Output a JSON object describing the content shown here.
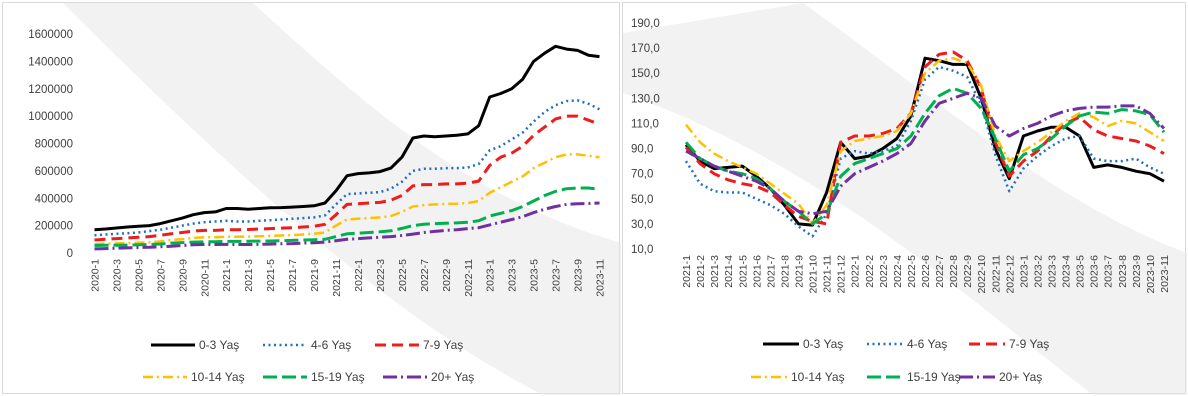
{
  "colors": {
    "0-3": "#000000",
    "4-6": "#1f6fc4",
    "7-9": "#ee1c1c",
    "10-14": "#ffc000",
    "15-19": "#00b050",
    "20+": "#7030a0",
    "background_band": "#e7e7e7"
  },
  "chart_data": [
    {
      "type": "line",
      "ylim": [
        0,
        1600000
      ],
      "yticks": [
        "0",
        "200000",
        "400000",
        "600000",
        "800000",
        "1000000",
        "1200000",
        "1400000",
        "1600000"
      ],
      "x": [
        "2020-1",
        "2020-2",
        "2020-3",
        "2020-4",
        "2020-5",
        "2020-6",
        "2020-7",
        "2020-8",
        "2020-9",
        "2020-10",
        "2020-11",
        "2020-12",
        "2021-1",
        "2021-2",
        "2021-3",
        "2021-4",
        "2021-5",
        "2021-6",
        "2021-7",
        "2021-8",
        "2021-9",
        "2021-10",
        "2021-11",
        "2021-12",
        "2022-1",
        "2022-2",
        "2022-3",
        "2022-4",
        "2022-5",
        "2022-6",
        "2022-7",
        "2022-8",
        "2022-9",
        "2022-10",
        "2022-11",
        "2022-12",
        "2023-1",
        "2023-2",
        "2023-3",
        "2023-4",
        "2023-5",
        "2023-6",
        "2023-7",
        "2023-8",
        "2023-9",
        "2023-10",
        "2023-11"
      ],
      "xticks_shown": [
        "2020-1",
        "2020-3",
        "2020-5",
        "2020-7",
        "2020-9",
        "2020-11",
        "2021-1",
        "2021-3",
        "2021-5",
        "2021-7",
        "2021-9",
        "2021-11",
        "2022-1",
        "2022-3",
        "2022-5",
        "2022-7",
        "2022-9",
        "2022-11",
        "2023-1",
        "2023-3",
        "2023-5",
        "2023-7",
        "2023-9",
        "2023-11"
      ],
      "series": [
        {
          "name": "0-3 Yaş",
          "key": "0-3",
          "values": [
            170000,
            175000,
            183000,
            190000,
            195000,
            200000,
            215000,
            235000,
            255000,
            280000,
            295000,
            300000,
            325000,
            325000,
            320000,
            325000,
            330000,
            332000,
            335000,
            340000,
            345000,
            365000,
            455000,
            565000,
            580000,
            585000,
            595000,
            620000,
            700000,
            840000,
            855000,
            850000,
            855000,
            860000,
            870000,
            930000,
            1140000,
            1165000,
            1200000,
            1270000,
            1400000,
            1460000,
            1510000,
            1490000,
            1480000,
            1445000,
            1435000
          ]
        },
        {
          "name": "4-6 Yaş",
          "key": "4-6",
          "values": [
            130000,
            135000,
            140000,
            145000,
            150000,
            160000,
            170000,
            185000,
            200000,
            215000,
            225000,
            230000,
            235000,
            230000,
            230000,
            235000,
            240000,
            245000,
            250000,
            255000,
            260000,
            275000,
            355000,
            430000,
            435000,
            440000,
            445000,
            470000,
            520000,
            600000,
            615000,
            615000,
            620000,
            620000,
            625000,
            650000,
            750000,
            780000,
            830000,
            880000,
            960000,
            1030000,
            1080000,
            1110000,
            1115000,
            1090000,
            1050000
          ]
        },
        {
          "name": "7-9 Yaş",
          "key": "7-9",
          "values": [
            95000,
            100000,
            105000,
            110000,
            115000,
            120000,
            130000,
            140000,
            150000,
            160000,
            165000,
            165000,
            170000,
            170000,
            172000,
            175000,
            178000,
            182000,
            185000,
            190000,
            195000,
            210000,
            280000,
            355000,
            360000,
            365000,
            370000,
            385000,
            420000,
            490000,
            500000,
            500000,
            505000,
            505000,
            510000,
            525000,
            640000,
            700000,
            730000,
            780000,
            860000,
            920000,
            980000,
            1000000,
            1000000,
            970000,
            940000
          ]
        },
        {
          "name": "10-14 Yaş",
          "key": "10-14",
          "values": [
            65000,
            68000,
            70000,
            72000,
            75000,
            78000,
            85000,
            95000,
            100000,
            110000,
            115000,
            115000,
            118000,
            118000,
            120000,
            122000,
            125000,
            128000,
            130000,
            135000,
            140000,
            150000,
            200000,
            245000,
            250000,
            255000,
            260000,
            270000,
            300000,
            340000,
            350000,
            355000,
            358000,
            360000,
            365000,
            380000,
            440000,
            480000,
            520000,
            560000,
            620000,
            660000,
            700000,
            720000,
            720000,
            710000,
            700000
          ]
        },
        {
          "name": "15-19 Yaş",
          "key": "15-19",
          "values": [
            55000,
            56000,
            57000,
            58000,
            60000,
            62000,
            66000,
            72000,
            76000,
            80000,
            82000,
            82000,
            85000,
            85000,
            86000,
            87000,
            88000,
            90000,
            92000,
            95000,
            97000,
            100000,
            120000,
            140000,
            145000,
            150000,
            155000,
            162000,
            180000,
            200000,
            210000,
            215000,
            218000,
            220000,
            225000,
            235000,
            270000,
            290000,
            310000,
            340000,
            380000,
            420000,
            450000,
            470000,
            475000,
            475000,
            465000
          ]
        },
        {
          "name": "20+ Yaş",
          "key": "20+",
          "values": [
            30000,
            32000,
            35000,
            37000,
            40000,
            42000,
            45000,
            50000,
            55000,
            60000,
            62000,
            62000,
            63000,
            62000,
            62000,
            63000,
            65000,
            67000,
            69000,
            72000,
            75000,
            80000,
            90000,
            100000,
            105000,
            110000,
            115000,
            120000,
            128000,
            138000,
            150000,
            158000,
            165000,
            170000,
            178000,
            185000,
            205000,
            225000,
            245000,
            265000,
            295000,
            320000,
            340000,
            355000,
            360000,
            362000,
            365000
          ]
        }
      ]
    },
    {
      "type": "line",
      "ylim": [
        10,
        190
      ],
      "yticks": [
        "10,0",
        "30,0",
        "50,0",
        "70,0",
        "90,0",
        "110,0",
        "130,0",
        "150,0",
        "170,0",
        "190,0"
      ],
      "x": [
        "2021-1",
        "2021-2",
        "2021-3",
        "2021-4",
        "2021-5",
        "2021-6",
        "2021-7",
        "2021-8",
        "2021-9",
        "2021-10",
        "2021-11",
        "2021-12",
        "2022-1",
        "2022-2",
        "2022-3",
        "2022-4",
        "2022-5",
        "2022-6",
        "2022-7",
        "2022-8",
        "2022-9",
        "2022-10",
        "2022-11",
        "2022-12",
        "2023-1",
        "2023-2",
        "2023-3",
        "2023-4",
        "2023-5",
        "2023-6",
        "2023-7",
        "2023-8",
        "2023-9",
        "2023-10",
        "2023-11"
      ],
      "xticks_shown": [
        "2021-1",
        "2021-2",
        "2021-3",
        "2021-4",
        "2021-5",
        "2021-6",
        "2021-7",
        "2021-8",
        "2021-9",
        "2021-10",
        "2021-11",
        "2021-12",
        "2022-1",
        "2022-2",
        "2022-3",
        "2022-4",
        "2022-5",
        "2022-6",
        "2022-7",
        "2022-8",
        "2022-9",
        "2022-10",
        "2022-11",
        "2022-12",
        "2023-1",
        "2023-2",
        "2023-3",
        "2023-4",
        "2023-5",
        "2023-6",
        "2023-7",
        "2023-8",
        "2023-9",
        "2023-10",
        "2023-11"
      ],
      "series": [
        {
          "name": "0-3 Yaş",
          "key": "0-3",
          "values": [
            93,
            80,
            74,
            75,
            76,
            68,
            58,
            45,
            30,
            29,
            55,
            95,
            82,
            84,
            90,
            98,
            116,
            162,
            160,
            157,
            157,
            130,
            90,
            66,
            100,
            104,
            107,
            107,
            100,
            75,
            77,
            75,
            72,
            70,
            64
          ]
        },
        {
          "name": "4-6 Yaş",
          "key": "4-6",
          "values": [
            80,
            62,
            56,
            55,
            55,
            50,
            45,
            38,
            28,
            20,
            38,
            82,
            88,
            86,
            88,
            92,
            112,
            145,
            155,
            152,
            147,
            125,
            85,
            56,
            74,
            84,
            92,
            98,
            100,
            82,
            80,
            80,
            82,
            75,
            70
          ]
        },
        {
          "name": "7-9 Yaş",
          "key": "7-9",
          "values": [
            91,
            78,
            70,
            65,
            62,
            60,
            55,
            45,
            36,
            32,
            30,
            95,
            100,
            100,
            102,
            106,
            118,
            155,
            165,
            167,
            160,
            138,
            95,
            68,
            80,
            88,
            100,
            110,
            115,
            105,
            100,
            98,
            96,
            92,
            86
          ]
        },
        {
          "name": "10-14 Yaş",
          "key": "10-14",
          "values": [
            109,
            95,
            86,
            80,
            75,
            70,
            62,
            54,
            46,
            30,
            45,
            88,
            96,
            98,
            100,
            104,
            118,
            150,
            160,
            162,
            158,
            140,
            100,
            80,
            88,
            95,
            103,
            112,
            118,
            115,
            108,
            112,
            110,
            103,
            96
          ]
        },
        {
          "name": "15-19 Yaş",
          "key": "15-19",
          "values": [
            95,
            82,
            76,
            72,
            70,
            66,
            58,
            48,
            40,
            30,
            38,
            68,
            78,
            82,
            86,
            90,
            100,
            118,
            132,
            138,
            134,
            122,
            98,
            72,
            85,
            90,
            98,
            108,
            116,
            119,
            118,
            121,
            120,
            117,
            103
          ]
        },
        {
          "name": "20+ Yaş",
          "key": "20+",
          "values": [
            88,
            82,
            76,
            72,
            68,
            64,
            58,
            48,
            40,
            38,
            40,
            60,
            70,
            75,
            80,
            86,
            94,
            112,
            126,
            130,
            134,
            130,
            108,
            100,
            106,
            110,
            116,
            120,
            122,
            123,
            123,
            124,
            124,
            118,
            106
          ]
        }
      ]
    }
  ]
}
